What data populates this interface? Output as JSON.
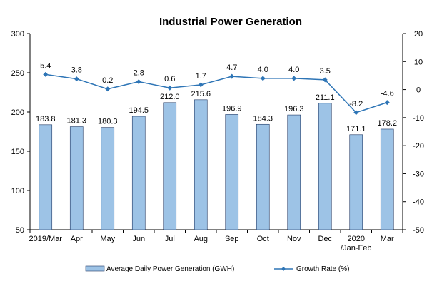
{
  "chart_data": {
    "type": "bar",
    "title": "Industrial Power Generation",
    "categories": [
      "2019/Mar",
      "Apr",
      "May",
      "Jun",
      "Jul",
      "Aug",
      "Sep",
      "Oct",
      "Nov",
      "Dec",
      "2020\n/Jan-Feb",
      "Mar"
    ],
    "series": [
      {
        "name": "Average Daily Power Generation (GWH)",
        "type": "bar",
        "axis": "left",
        "color": "#9dc3e6",
        "values": [
          183.8,
          181.3,
          180.3,
          194.5,
          212.0,
          215.6,
          196.9,
          184.3,
          196.3,
          211.1,
          171.1,
          178.2
        ],
        "labels": [
          "183.8",
          "181.3",
          "180.3",
          "194.5",
          "212.0",
          "215.6",
          "196.9",
          "184.3",
          "196.3",
          "211.1",
          "171.1",
          "178.2"
        ]
      },
      {
        "name": "Growth Rate (%)",
        "type": "line",
        "axis": "right",
        "color": "#2e75b6",
        "values": [
          5.4,
          3.8,
          0.2,
          2.8,
          0.6,
          1.7,
          4.7,
          4.0,
          4.0,
          3.5,
          -8.2,
          -4.6
        ],
        "labels": [
          "5.4",
          "3.8",
          "0.2",
          "2.8",
          "0.6",
          "1.7",
          "4.7",
          "4.0",
          "4.0",
          "3.5",
          "-8.2",
          "-4.6"
        ]
      }
    ],
    "ylim_left": [
      50,
      300
    ],
    "yticks_left": [
      "300",
      "250",
      "200",
      "150",
      "100",
      "50"
    ],
    "ylim_right": [
      -50,
      20
    ],
    "yticks_right": [
      "20",
      "10",
      "0",
      "-10",
      "-20",
      "-30",
      "-40",
      "-50"
    ],
    "grid": false,
    "legend_position": "bottom"
  }
}
